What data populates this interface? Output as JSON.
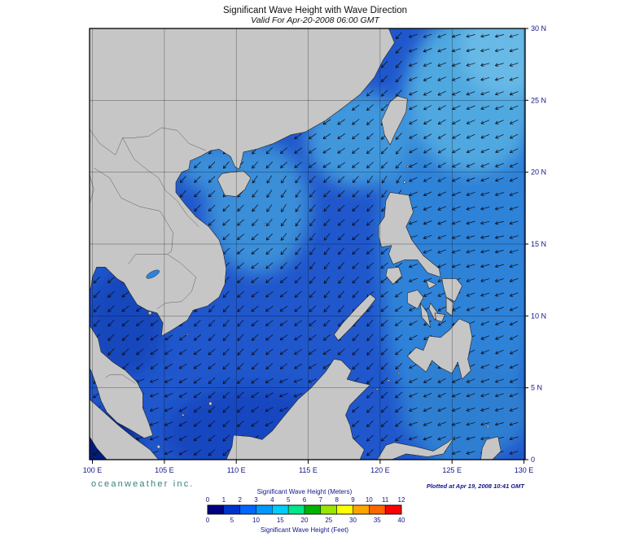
{
  "header": {
    "title": "Significant Wave Height with Wave Direction",
    "subtitle": "Valid For Apr-20-2008 06:00 GMT"
  },
  "map": {
    "lat_labels": [
      "30 N",
      "25 N",
      "20 N",
      "15 N",
      "10 N",
      "5 N",
      "0"
    ],
    "lon_labels": [
      "100 E",
      "105 E",
      "110 E",
      "115 E",
      "120 E",
      "125 E",
      "130 E"
    ]
  },
  "footer": {
    "branding": "oceanweather inc.",
    "branding_color": "#337f7f",
    "plotted": "Plotted at Apr 19, 2008 10:41 GMT"
  },
  "legend": {
    "title_meters": "Significant Wave Height (Meters)",
    "title_feet": "Significant Wave Height (Feet)",
    "meters_ticks": [
      "0",
      "1",
      "2",
      "3",
      "4",
      "5",
      "6",
      "7",
      "8",
      "9",
      "10",
      "11",
      "12"
    ],
    "feet_ticks": [
      "0",
      "5",
      "10",
      "15",
      "20",
      "25",
      "30",
      "35",
      "40"
    ],
    "colors": [
      "#000080",
      "#0033cc",
      "#0066ff",
      "#0099ff",
      "#00ccff",
      "#00e68a",
      "#00b300",
      "#99e600",
      "#ffff00",
      "#ffa500",
      "#ff6600",
      "#ff0000"
    ]
  },
  "chart_data": {
    "type": "heatmap",
    "title": "Significant Wave Height with Wave Direction",
    "valid_time": "Apr-20-2008 06:00 GMT",
    "plotted_time": "Apr 19, 2008 10:41 GMT",
    "lon_range_deg_e": [
      100,
      130
    ],
    "lat_range_deg_n": [
      0,
      30
    ],
    "grid_interval_deg": 5,
    "colorbar_meters": [
      0,
      1,
      2,
      3,
      4,
      5,
      6,
      7,
      8,
      9,
      10,
      11,
      12
    ],
    "colorbar_feet": [
      0,
      5,
      10,
      15,
      20,
      25,
      30,
      35,
      40
    ],
    "approx_regional_wave_height_m": {
      "malacca_strait": 0.5,
      "gulf_of_thailand": 1.0,
      "south_china_sea": 1.5,
      "philippine_sea_pacific": 2.5,
      "northeast_pacific_corner": 3.0
    },
    "wave_direction_summary": "Arrows indicate wave propagation generally toward the southwest to west-southwest across the basin"
  }
}
